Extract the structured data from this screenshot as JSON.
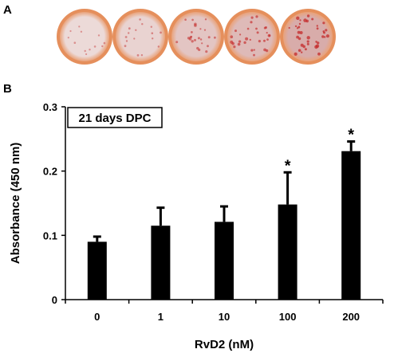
{
  "panels": {
    "a_label": "A",
    "b_label": "B"
  },
  "dishes": [
    {
      "name": "dish-0",
      "stain": 0.15
    },
    {
      "name": "dish-1",
      "stain": 0.25
    },
    {
      "name": "dish-10",
      "stain": 0.45
    },
    {
      "name": "dish-100",
      "stain": 0.6
    },
    {
      "name": "dish-200",
      "stain": 0.8
    }
  ],
  "chart_data": {
    "type": "bar",
    "annotation": "21 days DPC",
    "xlabel": "RvD2 (nM)",
    "ylabel": "Absorbance (450 nm)",
    "categories": [
      "0",
      "1",
      "10",
      "100",
      "200"
    ],
    "values": [
      0.09,
      0.115,
      0.121,
      0.148,
      0.231
    ],
    "errors": [
      0.008,
      0.028,
      0.024,
      0.05,
      0.015
    ],
    "significance": [
      "",
      "",
      "",
      "*",
      "*"
    ],
    "ylim": [
      0,
      0.3
    ],
    "yticks": [
      0,
      0.1,
      0.2,
      0.3
    ],
    "ytick_labels": [
      "0",
      "0.1",
      "0.2",
      "0.3"
    ],
    "bar_color": "#000000",
    "grid": false
  }
}
